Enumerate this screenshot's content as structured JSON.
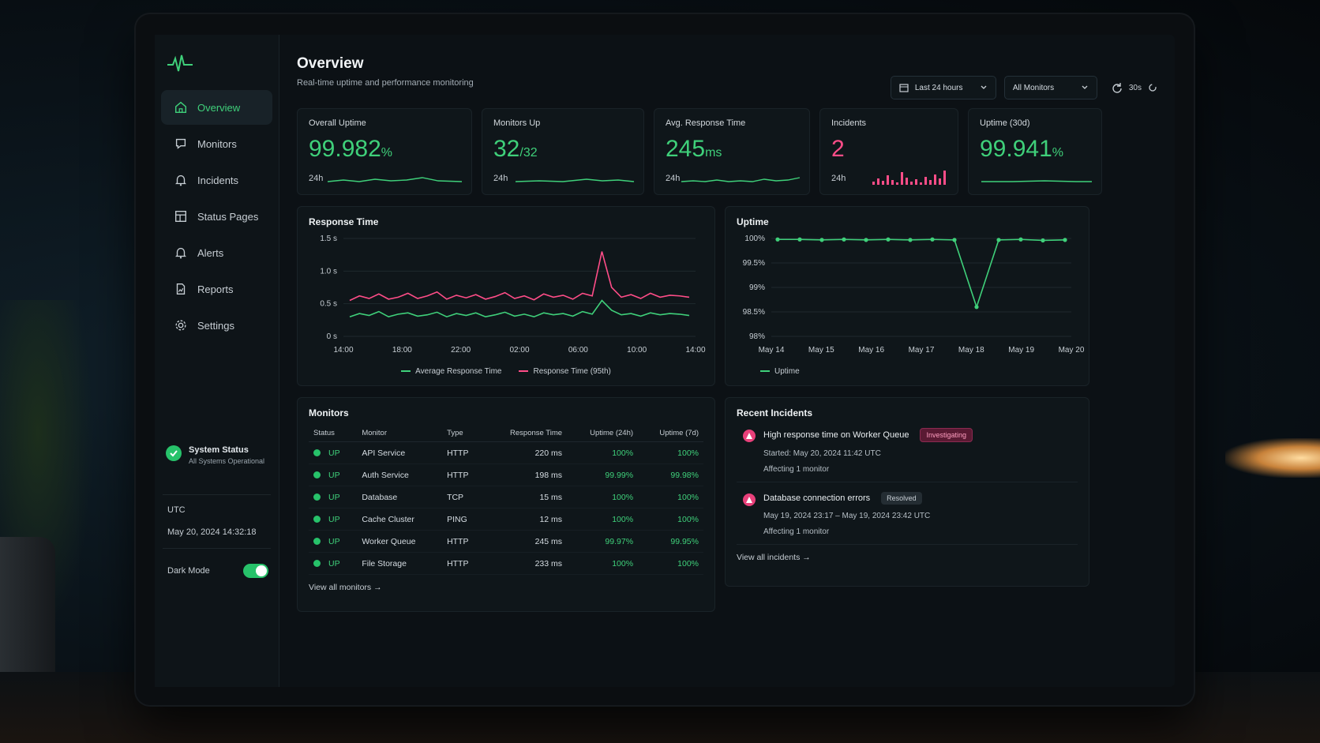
{
  "sidebar": {
    "items": [
      {
        "label": "Overview",
        "icon": "home-icon",
        "active": true
      },
      {
        "label": "Monitors",
        "icon": "monitor-icon"
      },
      {
        "label": "Incidents",
        "icon": "bell-icon"
      },
      {
        "label": "Status Pages",
        "icon": "status-page-icon"
      },
      {
        "label": "Alerts",
        "icon": "alert-bell-icon"
      },
      {
        "label": "Reports",
        "icon": "report-icon"
      },
      {
        "label": "Settings",
        "icon": "gear-icon"
      }
    ],
    "system_status": {
      "title": "System Status",
      "subtitle": "All Systems Operational"
    },
    "timezone": "UTC",
    "datetime": "May 20, 2024 14:32:18",
    "dark_mode_label": "Dark Mode",
    "dark_mode_on": true
  },
  "header": {
    "title": "Overview",
    "subtitle": "Real-time uptime and performance monitoring",
    "date_range": "Last 24 hours",
    "monitor_filter": "All Monitors",
    "refresh_interval": "30s"
  },
  "kpis": {
    "overall_uptime": {
      "label": "Overall Uptime",
      "value": "99.982",
      "unit": "%",
      "foot": "24h"
    },
    "monitors_up": {
      "label": "Monitors Up",
      "value": "32",
      "unit": "/32",
      "foot": "24h"
    },
    "avg_response": {
      "label": "Avg. Response Time",
      "value": "245",
      "unit": "ms",
      "foot": "24h"
    },
    "incidents": {
      "label": "Incidents",
      "value": "2",
      "foot": "24h"
    },
    "uptime_30d": {
      "label": "Uptime (30d)",
      "value": "99.941",
      "unit": "%"
    }
  },
  "response_chart": {
    "title": "Response Time",
    "y_ticks": [
      "1.5 s",
      "1.0 s",
      "0.5 s",
      "0 s"
    ],
    "x_ticks": [
      "14:00",
      "18:00",
      "22:00",
      "02:00",
      "06:00",
      "10:00",
      "14:00"
    ],
    "legend": [
      "Average Response Time",
      "Response Time (95th)"
    ]
  },
  "uptime_chart": {
    "title": "Uptime",
    "y_ticks": [
      "100%",
      "99.5%",
      "99%",
      "98.5%",
      "98%"
    ],
    "x_ticks": [
      "May 14",
      "May 15",
      "May 16",
      "May 17",
      "May 18",
      "May 19",
      "May 20"
    ],
    "legend": [
      "Uptime"
    ]
  },
  "chart_data": [
    {
      "type": "line",
      "title": "Response Time",
      "ylabel": "",
      "ylim": [
        0,
        1.5
      ],
      "x_ticks": [
        "14:00",
        "18:00",
        "22:00",
        "02:00",
        "06:00",
        "10:00",
        "14:00"
      ],
      "series": [
        {
          "name": "Average Response Time",
          "color": "#3fd07a",
          "values": [
            0.3,
            0.35,
            0.32,
            0.38,
            0.3,
            0.34,
            0.36,
            0.31,
            0.33,
            0.37,
            0.3,
            0.35,
            0.32,
            0.36,
            0.3,
            0.33,
            0.37,
            0.31,
            0.34,
            0.3,
            0.36,
            0.33,
            0.35,
            0.31,
            0.38,
            0.34,
            0.55,
            0.4,
            0.33,
            0.35,
            0.31,
            0.36,
            0.33,
            0.35,
            0.34,
            0.32
          ]
        },
        {
          "name": "Response Time (95th)",
          "color": "#ff4d88",
          "values": [
            0.55,
            0.62,
            0.58,
            0.65,
            0.57,
            0.6,
            0.66,
            0.58,
            0.62,
            0.68,
            0.57,
            0.63,
            0.59,
            0.64,
            0.57,
            0.61,
            0.67,
            0.58,
            0.62,
            0.56,
            0.65,
            0.6,
            0.63,
            0.57,
            0.66,
            0.62,
            1.3,
            0.75,
            0.6,
            0.64,
            0.58,
            0.66,
            0.6,
            0.63,
            0.62,
            0.6
          ]
        }
      ]
    },
    {
      "type": "line",
      "title": "Uptime",
      "ylim": [
        98,
        100
      ],
      "x_ticks": [
        "May 14",
        "May 15",
        "May 16",
        "May 17",
        "May 18",
        "May 19",
        "May 20"
      ],
      "series": [
        {
          "name": "Uptime",
          "color": "#3fd07a",
          "values": [
            99.98,
            99.98,
            99.97,
            99.98,
            99.97,
            99.98,
            99.97,
            99.98,
            99.97,
            98.6,
            99.97,
            99.98,
            99.96,
            99.97
          ]
        }
      ]
    }
  ],
  "monitors": {
    "title": "Monitors",
    "columns": [
      "Status",
      "Monitor",
      "Type",
      "Response Time",
      "Uptime (24h)",
      "Uptime (7d)"
    ],
    "rows": [
      {
        "status": "UP",
        "name": "API Service",
        "type": "HTTP",
        "rt": "220 ms",
        "u24": "100%",
        "u7": "100%"
      },
      {
        "status": "UP",
        "name": "Auth Service",
        "type": "HTTP",
        "rt": "198 ms",
        "u24": "99.99%",
        "u7": "99.98%"
      },
      {
        "status": "UP",
        "name": "Database",
        "type": "TCP",
        "rt": "15 ms",
        "u24": "100%",
        "u7": "100%"
      },
      {
        "status": "UP",
        "name": "Cache Cluster",
        "type": "PING",
        "rt": "12 ms",
        "u24": "100%",
        "u7": "100%"
      },
      {
        "status": "UP",
        "name": "Worker Queue",
        "type": "HTTP",
        "rt": "245 ms",
        "u24": "99.97%",
        "u7": "99.95%"
      },
      {
        "status": "UP",
        "name": "File Storage",
        "type": "HTTP",
        "rt": "233 ms",
        "u24": "100%",
        "u7": "100%"
      }
    ],
    "view_all": "View all monitors"
  },
  "incidents": {
    "title": "Recent Incidents",
    "items": [
      {
        "title": "High response time on Worker Queue",
        "badge": "Investigating",
        "time": "Started: May 20, 2024 11:42 UTC",
        "affecting": "Affecting 1 monitor"
      },
      {
        "title": "Database connection errors",
        "badge": "Resolved",
        "time": "May 19, 2024 23:17 – May 19, 2024 23:42 UTC",
        "affecting": "Affecting 1 monitor"
      }
    ],
    "view_all": "View all incidents"
  },
  "colors": {
    "accent": "#3fd07a",
    "danger": "#ff4d88",
    "bg": "#0c1115"
  }
}
